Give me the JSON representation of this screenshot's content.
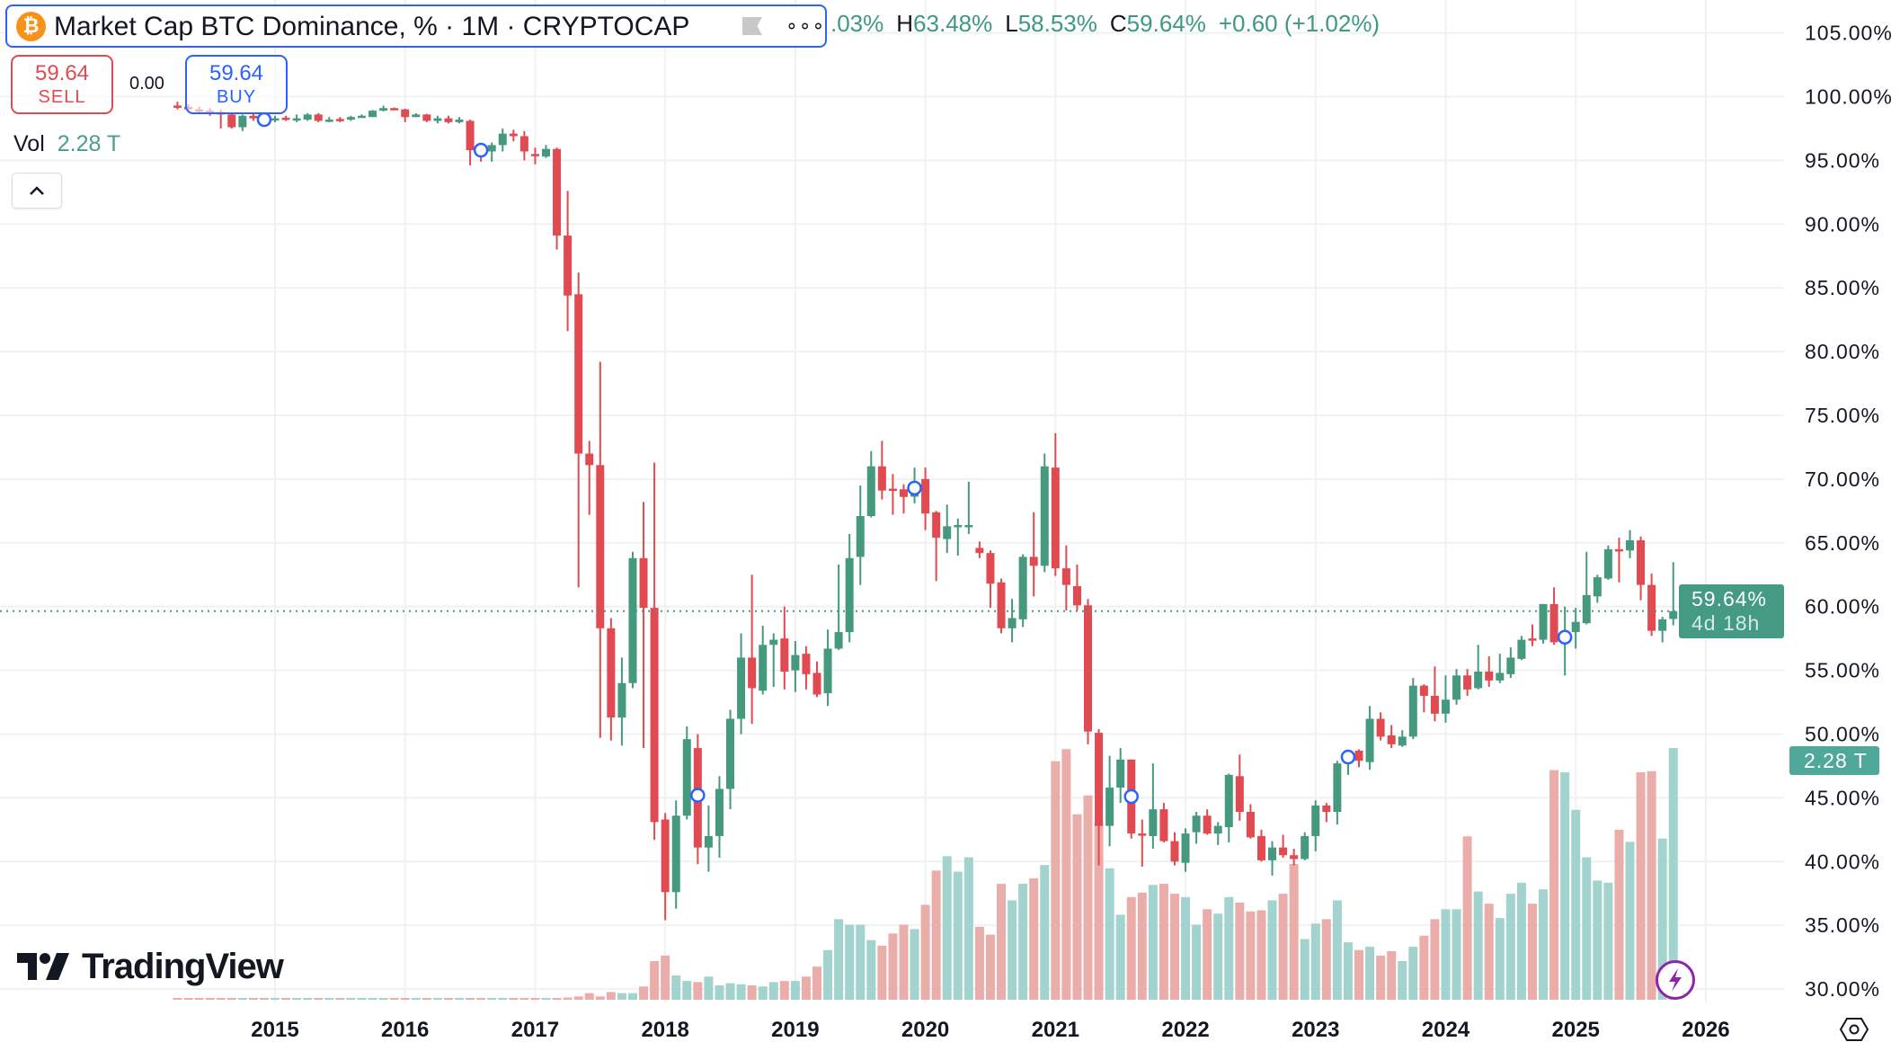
{
  "legend": {
    "title": "Market Cap BTC Dominance, % · 1M · CRYPTOCAP",
    "symbol_icon": "bitcoin-icon",
    "flag_icon": "flag-icon",
    "more_icon": "more-dots-icon",
    "open_partial": ".03%",
    "high_label": "H",
    "high_value": "63.48%",
    "low_label": "L",
    "low_value": "58.53%",
    "close_label": "C",
    "close_value": "59.64%",
    "change": "+0.60 (+1.02%)"
  },
  "trade": {
    "sell_price": "59.64",
    "sell_label": "SELL",
    "spread": "0.00",
    "buy_price": "59.64",
    "buy_label": "BUY"
  },
  "volume_legend": {
    "label": "Vol",
    "value": "2.28 T"
  },
  "collapse_icon": "chevron-up-icon",
  "price_axis": {
    "last_price": "59.64%",
    "countdown": "4d 18h",
    "volume_tag": "2.28 T"
  },
  "logo_text": "TradingView",
  "icons": {
    "flash": "lightning-icon",
    "settings": "settings-icon"
  },
  "colors": {
    "up": "#45997f",
    "down": "#e04a50",
    "vol_up": "#a3d3ce",
    "vol_down": "#ebadaa",
    "accent": "#2962ff",
    "marker": "#2962ff"
  },
  "chart_data": {
    "type": "candlestick",
    "interval": "1M",
    "y_unit": "%",
    "ylim": [
      30,
      105
    ],
    "y_ticks": [
      "105.00%",
      "100.00%",
      "95.00%",
      "90.00%",
      "85.00%",
      "80.00%",
      "75.00%",
      "70.00%",
      "65.00%",
      "60.00%",
      "55.00%",
      "50.00%",
      "45.00%",
      "40.00%",
      "35.00%",
      "30.00%"
    ],
    "x_ticks": [
      "2015",
      "2016",
      "2017",
      "2018",
      "2019",
      "2020",
      "2021",
      "2022",
      "2023",
      "2024",
      "2025",
      "2026"
    ],
    "grid": true,
    "last_price": 59.64,
    "volume_unit": "T",
    "columns": [
      "date",
      "open",
      "high",
      "low",
      "close",
      "volume"
    ],
    "rows": [
      [
        "2014-04",
        99.3,
        99.6,
        99.0,
        99.2,
        0.01
      ],
      [
        "2014-05",
        99.2,
        99.4,
        98.9,
        99.0,
        0.01
      ],
      [
        "2014-06",
        99.0,
        99.2,
        98.7,
        98.9,
        0.01
      ],
      [
        "2014-07",
        98.9,
        99.1,
        98.5,
        98.8,
        0.01
      ],
      [
        "2014-08",
        98.8,
        99.0,
        97.5,
        98.6,
        0.01
      ],
      [
        "2014-09",
        98.6,
        98.7,
        97.5,
        97.6,
        0.01
      ],
      [
        "2014-10",
        97.6,
        98.6,
        97.3,
        98.5,
        0.01
      ],
      [
        "2014-11",
        98.5,
        98.7,
        98.1,
        98.3,
        0.01
      ],
      [
        "2014-12",
        98.3,
        98.5,
        98.0,
        98.2,
        0.01
      ],
      [
        "2015-01",
        98.2,
        98.5,
        98.0,
        98.3,
        0.01
      ],
      [
        "2015-02",
        98.35,
        98.5,
        98.1,
        98.3,
        0.01
      ],
      [
        "2015-03",
        98.2,
        98.6,
        98.0,
        98.3,
        0.01
      ],
      [
        "2015-04",
        98.2,
        98.7,
        98.1,
        98.6,
        0.01
      ],
      [
        "2015-05",
        98.6,
        98.7,
        98.0,
        98.1,
        0.01
      ],
      [
        "2015-06",
        98.1,
        98.4,
        98.0,
        98.2,
        0.01
      ],
      [
        "2015-07",
        98.25,
        98.4,
        98.0,
        98.2,
        0.01
      ],
      [
        "2015-08",
        98.2,
        98.5,
        98.1,
        98.4,
        0.01
      ],
      [
        "2015-09",
        98.4,
        98.6,
        98.4,
        98.5,
        0.01
      ],
      [
        "2015-10",
        98.4,
        98.95,
        98.4,
        98.9,
        0.01
      ],
      [
        "2015-11",
        98.9,
        99.3,
        98.85,
        99.1,
        0.01
      ],
      [
        "2015-12",
        99.1,
        99.15,
        98.95,
        99.0,
        0.01
      ],
      [
        "2016-01",
        99.0,
        99.05,
        98.0,
        98.4,
        0.01
      ],
      [
        "2016-02",
        98.4,
        98.7,
        98.4,
        98.6,
        0.01
      ],
      [
        "2016-03",
        98.6,
        98.65,
        98.0,
        98.1,
        0.01
      ],
      [
        "2016-04",
        98.1,
        98.5,
        97.9,
        98.3,
        0.01
      ],
      [
        "2016-05",
        98.3,
        98.5,
        97.9,
        98.0,
        0.01
      ],
      [
        "2016-06",
        98.0,
        98.4,
        97.9,
        98.2,
        0.01
      ],
      [
        "2016-07",
        98.1,
        98.2,
        94.6,
        95.8,
        0.01
      ],
      [
        "2016-08",
        95.8,
        96.0,
        94.9,
        95.6,
        0.01
      ],
      [
        "2016-09",
        95.7,
        96.4,
        94.9,
        96.2,
        0.01
      ],
      [
        "2016-10",
        96.2,
        97.5,
        95.7,
        97.1,
        0.01
      ],
      [
        "2016-11",
        97.1,
        97.4,
        96.5,
        96.9,
        0.01
      ],
      [
        "2016-12",
        96.9,
        97.3,
        95.0,
        95.7,
        0.01
      ],
      [
        "2017-01",
        95.5,
        96.0,
        94.7,
        95.4,
        0.01
      ],
      [
        "2017-02",
        95.3,
        96.2,
        95.2,
        95.9,
        0.01
      ],
      [
        "2017-03",
        95.9,
        96.0,
        88.0,
        89.1,
        0.01
      ],
      [
        "2017-04",
        89.1,
        92.6,
        81.6,
        84.4,
        0.02
      ],
      [
        "2017-05",
        84.5,
        86.2,
        61.5,
        72.0,
        0.03
      ],
      [
        "2017-06",
        72.0,
        73.0,
        67.2,
        71.1,
        0.06
      ],
      [
        "2017-07",
        71.1,
        79.2,
        49.7,
        58.3,
        0.03
      ],
      [
        "2017-08",
        58.3,
        59.1,
        49.5,
        51.3,
        0.07
      ],
      [
        "2017-09",
        51.3,
        56.0,
        49.1,
        54.0,
        0.06
      ],
      [
        "2017-10",
        54.0,
        64.3,
        53.6,
        63.8,
        0.06
      ],
      [
        "2017-11",
        63.8,
        68.2,
        48.9,
        59.9,
        0.12
      ],
      [
        "2017-12",
        59.9,
        71.3,
        41.7,
        43.1,
        0.35
      ],
      [
        "2018-01",
        43.3,
        43.8,
        35.4,
        37.6,
        0.4
      ],
      [
        "2018-02",
        37.6,
        44.8,
        36.3,
        43.6,
        0.22
      ],
      [
        "2018-03",
        43.6,
        50.6,
        43.3,
        49.6,
        0.17
      ],
      [
        "2018-04",
        48.9,
        50.0,
        39.8,
        41.1,
        0.16
      ],
      [
        "2018-05",
        41.1,
        44.4,
        39.2,
        42.0,
        0.21
      ],
      [
        "2018-06",
        42.0,
        46.7,
        40.3,
        45.7,
        0.13
      ],
      [
        "2018-07",
        45.7,
        51.9,
        44.1,
        51.2,
        0.15
      ],
      [
        "2018-08",
        51.2,
        57.9,
        50.0,
        56.0,
        0.14
      ],
      [
        "2018-09",
        56.0,
        62.5,
        50.8,
        53.6,
        0.13
      ],
      [
        "2018-10",
        53.4,
        58.5,
        53.1,
        57.0,
        0.12
      ],
      [
        "2018-11",
        57.0,
        57.9,
        53.7,
        57.4,
        0.16
      ],
      [
        "2018-12",
        57.5,
        60.0,
        53.5,
        54.9,
        0.17
      ],
      [
        "2019-01",
        55.0,
        57.3,
        53.3,
        56.2,
        0.17
      ],
      [
        "2019-02",
        56.3,
        56.9,
        53.5,
        54.7,
        0.21
      ],
      [
        "2019-03",
        54.8,
        55.7,
        52.9,
        53.1,
        0.3
      ],
      [
        "2019-04",
        53.2,
        58.2,
        52.2,
        56.7,
        0.45
      ],
      [
        "2019-05",
        56.7,
        63.3,
        56.6,
        58.0,
        0.73
      ],
      [
        "2019-06",
        58.0,
        65.7,
        57.2,
        63.8,
        0.68
      ],
      [
        "2019-07",
        63.9,
        69.5,
        61.7,
        67.1,
        0.68
      ],
      [
        "2019-08",
        67.1,
        72.2,
        67.0,
        71.0,
        0.54
      ],
      [
        "2019-09",
        71.0,
        73.0,
        68.4,
        69.1,
        0.49
      ],
      [
        "2019-10",
        69.25,
        70.4,
        67.2,
        69.2,
        0.6
      ],
      [
        "2019-11",
        69.2,
        69.6,
        67.3,
        68.6,
        0.68
      ],
      [
        "2019-12",
        68.7,
        70.9,
        68.1,
        68.8,
        0.64
      ],
      [
        "2020-01",
        70.0,
        70.9,
        66.0,
        67.3,
        0.86
      ],
      [
        "2020-02",
        67.4,
        67.5,
        62.0,
        65.4,
        1.17
      ],
      [
        "2020-03",
        65.3,
        68.0,
        64.2,
        66.3,
        1.3
      ],
      [
        "2020-04",
        66.3,
        66.9,
        64.0,
        66.4,
        1.16
      ],
      [
        "2020-05",
        66.3,
        69.8,
        65.7,
        66.4,
        1.29
      ],
      [
        "2020-06",
        64.6,
        65.1,
        63.8,
        64.2,
        0.66
      ],
      [
        "2020-07",
        64.2,
        64.4,
        59.9,
        61.8,
        0.59
      ],
      [
        "2020-08",
        61.9,
        62.2,
        57.9,
        58.3,
        1.05
      ],
      [
        "2020-09",
        58.3,
        60.6,
        57.2,
        59.1,
        0.9
      ],
      [
        "2020-10",
        59.0,
        64.1,
        58.4,
        63.9,
        1.05
      ],
      [
        "2020-11",
        63.9,
        67.4,
        60.8,
        63.2,
        1.1
      ],
      [
        "2020-12",
        63.2,
        72.0,
        62.7,
        71.0,
        1.22
      ],
      [
        "2021-01",
        70.9,
        73.6,
        62.4,
        63.0,
        2.16
      ],
      [
        "2021-02",
        63.0,
        64.8,
        59.7,
        61.7,
        2.27
      ],
      [
        "2021-03",
        61.6,
        63.3,
        59.7,
        60.1,
        1.68
      ],
      [
        "2021-04",
        60.1,
        60.6,
        49.2,
        50.2,
        1.85
      ],
      [
        "2021-05",
        50.1,
        50.4,
        39.7,
        42.8,
        1.6
      ],
      [
        "2021-06",
        42.8,
        48.3,
        41.2,
        45.8,
        1.19
      ],
      [
        "2021-07",
        45.8,
        48.9,
        44.6,
        48.0,
        0.77
      ],
      [
        "2021-08",
        48.0,
        48.0,
        41.8,
        42.2,
        0.93
      ],
      [
        "2021-09",
        42.2,
        43.3,
        39.6,
        42.1,
        0.97
      ],
      [
        "2021-10",
        42.0,
        47.7,
        41.0,
        44.1,
        1.04
      ],
      [
        "2021-11",
        44.1,
        44.6,
        41.5,
        41.6,
        1.05
      ],
      [
        "2021-12",
        41.6,
        42.3,
        39.7,
        40.0,
        0.96
      ],
      [
        "2022-01",
        39.9,
        42.6,
        39.2,
        42.2,
        0.93
      ],
      [
        "2022-02",
        42.3,
        43.9,
        41.4,
        43.6,
        0.68
      ],
      [
        "2022-03",
        43.6,
        44.1,
        42.1,
        42.2,
        0.82
      ],
      [
        "2022-04",
        42.2,
        43.1,
        41.3,
        42.8,
        0.78
      ],
      [
        "2022-05",
        42.7,
        46.9,
        41.5,
        46.8,
        0.93
      ],
      [
        "2022-06",
        46.7,
        48.4,
        43.2,
        43.9,
        0.88
      ],
      [
        "2022-07",
        43.9,
        44.5,
        41.8,
        41.9,
        0.8
      ],
      [
        "2022-08",
        42.0,
        42.5,
        40.0,
        40.1,
        0.81
      ],
      [
        "2022-09",
        40.1,
        41.6,
        38.9,
        41.1,
        0.9
      ],
      [
        "2022-10",
        41.1,
        42.1,
        40.3,
        40.5,
        0.96
      ],
      [
        "2022-11",
        40.5,
        41.0,
        39.7,
        40.2,
        1.23
      ],
      [
        "2022-12",
        40.2,
        42.3,
        40.1,
        42.0,
        0.55
      ],
      [
        "2023-01",
        42.0,
        44.8,
        40.8,
        44.4,
        0.69
      ],
      [
        "2023-02",
        44.4,
        44.6,
        43.1,
        43.9,
        0.73
      ],
      [
        "2023-03",
        43.9,
        47.9,
        42.9,
        47.7,
        0.9
      ],
      [
        "2023-04",
        47.7,
        48.3,
        46.8,
        48.0,
        0.52
      ],
      [
        "2023-05",
        48.7,
        48.8,
        47.4,
        47.9,
        0.45
      ],
      [
        "2023-06",
        47.8,
        52.2,
        47.2,
        51.2,
        0.48
      ],
      [
        "2023-07",
        51.2,
        51.7,
        49.5,
        49.8,
        0.4
      ],
      [
        "2023-08",
        49.9,
        50.7,
        48.9,
        49.2,
        0.44
      ],
      [
        "2023-09",
        49.1,
        50.3,
        49.0,
        49.8,
        0.35
      ],
      [
        "2023-10",
        49.8,
        54.4,
        49.6,
        53.8,
        0.48
      ],
      [
        "2023-11",
        53.8,
        53.9,
        51.7,
        53.0,
        0.58
      ],
      [
        "2023-12",
        53.0,
        55.3,
        51.0,
        51.6,
        0.73
      ],
      [
        "2024-01",
        51.6,
        54.6,
        50.9,
        52.7,
        0.82
      ],
      [
        "2024-02",
        52.7,
        55.1,
        52.3,
        54.6,
        0.82
      ],
      [
        "2024-03",
        54.6,
        55.1,
        53.0,
        53.5,
        1.48
      ],
      [
        "2024-04",
        53.6,
        57.0,
        53.5,
        54.9,
        0.98
      ],
      [
        "2024-05",
        54.9,
        56.1,
        53.7,
        54.2,
        0.87
      ],
      [
        "2024-06",
        54.2,
        56.3,
        54.0,
        54.8,
        0.74
      ],
      [
        "2024-07",
        54.7,
        56.8,
        54.4,
        56.0,
        0.96
      ],
      [
        "2024-08",
        55.9,
        57.7,
        55.8,
        57.4,
        1.06
      ],
      [
        "2024-09",
        57.5,
        58.6,
        56.9,
        57.45,
        0.87
      ],
      [
        "2024-10",
        57.4,
        60.2,
        57.1,
        60.2,
        1.0
      ],
      [
        "2024-11",
        60.2,
        61.5,
        57.0,
        57.2,
        2.08
      ],
      [
        "2024-12",
        57.2,
        60.0,
        54.6,
        57.7,
        2.06
      ],
      [
        "2025-01",
        58.0,
        59.9,
        56.7,
        58.8,
        1.72
      ],
      [
        "2025-02",
        58.7,
        64.3,
        58.6,
        60.9,
        1.29
      ],
      [
        "2025-03",
        60.8,
        62.5,
        60.3,
        62.3,
        1.08
      ],
      [
        "2025-04",
        62.2,
        64.8,
        62.1,
        64.5,
        1.06
      ],
      [
        "2025-05",
        64.5,
        65.4,
        61.9,
        64.45,
        1.54
      ],
      [
        "2025-06",
        64.4,
        66.0,
        63.8,
        65.2,
        1.43
      ],
      [
        "2025-07",
        65.2,
        65.5,
        60.5,
        61.7,
        2.06
      ],
      [
        "2025-08",
        61.7,
        62.6,
        57.7,
        58.1,
        2.07
      ],
      [
        "2025-09",
        58.1,
        59.2,
        57.2,
        59.0,
        1.46
      ],
      [
        "2025-10",
        59.03,
        63.48,
        58.53,
        59.64,
        2.28
      ]
    ],
    "event_markers": [
      {
        "date": "2014-12",
        "value": 98.2
      },
      {
        "date": "2016-08",
        "value": 95.8
      },
      {
        "date": "2018-04",
        "value": 45.2
      },
      {
        "date": "2019-12",
        "value": 69.3
      },
      {
        "date": "2021-08",
        "value": 45.1
      },
      {
        "date": "2023-04",
        "value": 48.2
      },
      {
        "date": "2024-12",
        "value": 57.6
      }
    ]
  }
}
